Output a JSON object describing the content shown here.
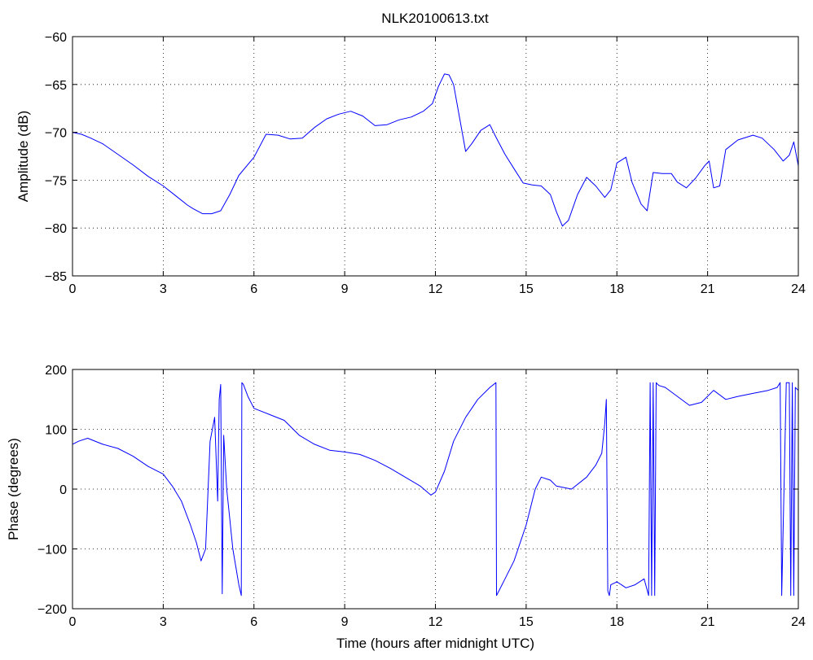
{
  "figure": {
    "title": "NLK20100613.txt",
    "line_color": "#0000ff"
  },
  "chart_data": [
    {
      "type": "line",
      "name": "amplitude",
      "title": "NLK20100613.txt",
      "xlabel": "",
      "ylabel": "Amplitude (dB)",
      "xlim": [
        0,
        24
      ],
      "ylim": [
        -85,
        -60
      ],
      "xticks": [
        0,
        3,
        6,
        9,
        12,
        15,
        18,
        21,
        24
      ],
      "yticks": [
        -85,
        -80,
        -75,
        -70,
        -65,
        -60
      ],
      "grid": true,
      "series": [
        {
          "color": "#0000ff",
          "x": [
            0,
            0.3,
            0.6,
            1.0,
            1.5,
            2.0,
            2.5,
            3.0,
            3.4,
            3.8,
            4.0,
            4.3,
            4.6,
            4.9,
            5.2,
            5.5,
            6.0,
            6.4,
            6.8,
            7.2,
            7.6,
            8.0,
            8.4,
            8.8,
            9.2,
            9.6,
            10.0,
            10.4,
            10.8,
            11.2,
            11.6,
            11.9,
            12.1,
            12.3,
            12.45,
            12.6,
            12.8,
            13.0,
            13.2,
            13.5,
            13.8,
            14.0,
            14.3,
            14.6,
            14.9,
            15.2,
            15.5,
            15.8,
            16.0,
            16.2,
            16.4,
            16.7,
            17.0,
            17.3,
            17.6,
            17.8,
            18.0,
            18.3,
            18.5,
            18.8,
            19.0,
            19.2,
            19.5,
            19.8,
            20.0,
            20.3,
            20.6,
            20.9,
            21.05,
            21.2,
            21.4,
            21.6,
            22.0,
            22.5,
            22.8,
            23.2,
            23.5,
            23.7,
            23.85,
            24.0
          ],
          "y": [
            -70,
            -70.2,
            -70.6,
            -71.2,
            -72.3,
            -73.4,
            -74.6,
            -75.6,
            -76.6,
            -77.6,
            -78.0,
            -78.5,
            -78.5,
            -78.2,
            -76.5,
            -74.5,
            -72.6,
            -70.2,
            -70.3,
            -70.7,
            -70.6,
            -69.5,
            -68.6,
            -68.1,
            -67.8,
            -68.3,
            -69.3,
            -69.2,
            -68.7,
            -68.4,
            -67.8,
            -67.0,
            -65.2,
            -63.9,
            -64.0,
            -65.0,
            -68.5,
            -72.0,
            -71.2,
            -69.8,
            -69.2,
            -70.5,
            -72.3,
            -73.8,
            -75.3,
            -75.5,
            -75.6,
            -76.5,
            -78.3,
            -79.8,
            -79.2,
            -76.5,
            -74.7,
            -75.6,
            -76.8,
            -76.0,
            -73.2,
            -72.6,
            -75.2,
            -77.5,
            -78.2,
            -74.2,
            -74.3,
            -74.3,
            -75.2,
            -75.8,
            -74.8,
            -73.5,
            -73.0,
            -75.8,
            -75.6,
            -71.8,
            -70.8,
            -70.3,
            -70.6,
            -71.8,
            -73.0,
            -72.4,
            -71.0,
            -73.5
          ]
        }
      ]
    },
    {
      "type": "line",
      "name": "phase",
      "title": "",
      "xlabel": "Time (hours after midnight UTC)",
      "ylabel": "Phase (degrees)",
      "xlim": [
        0,
        24
      ],
      "ylim": [
        -200,
        200
      ],
      "xticks": [
        0,
        3,
        6,
        9,
        12,
        15,
        18,
        21,
        24
      ],
      "yticks": [
        -200,
        -100,
        0,
        100,
        200
      ],
      "grid": true,
      "series": [
        {
          "color": "#0000ff",
          "x": [
            0,
            0.2,
            0.5,
            1.0,
            1.5,
            2.0,
            2.5,
            3.0,
            3.3,
            3.6,
            3.9,
            4.1,
            4.25,
            4.4,
            4.55,
            4.7,
            4.8,
            4.85,
            4.9,
            4.95,
            5.0,
            5.1,
            5.2,
            5.3,
            5.4,
            5.5,
            5.58,
            5.6,
            5.65,
            5.8,
            6.0,
            6.5,
            7.0,
            7.5,
            8.0,
            8.5,
            9.0,
            9.5,
            10.0,
            10.5,
            11.0,
            11.5,
            11.85,
            12.0,
            12.3,
            12.6,
            13.0,
            13.4,
            13.8,
            14.0,
            14.02,
            14.05,
            14.1,
            14.3,
            14.6,
            15.0,
            15.3,
            15.5,
            15.8,
            16.0,
            16.5,
            17.0,
            17.3,
            17.5,
            17.6,
            17.65,
            17.7,
            17.75,
            17.8,
            18.0,
            18.3,
            18.6,
            18.9,
            19.05,
            19.1,
            19.15,
            19.2,
            19.25,
            19.3,
            19.35,
            19.4,
            19.6,
            20.0,
            20.4,
            20.8,
            21.2,
            21.6,
            22.0,
            22.5,
            23.0,
            23.3,
            23.4,
            23.45,
            23.6,
            23.7,
            23.75,
            23.8,
            23.85,
            23.9,
            24.0
          ],
          "y": [
            75,
            80,
            85,
            75,
            68,
            55,
            38,
            25,
            5,
            -20,
            -60,
            -90,
            -120,
            -100,
            80,
            120,
            -20,
            150,
            175,
            -175,
            90,
            0,
            -50,
            -100,
            -130,
            -160,
            -178,
            178,
            175,
            155,
            135,
            125,
            115,
            90,
            75,
            65,
            62,
            58,
            48,
            35,
            20,
            5,
            -10,
            -5,
            30,
            80,
            120,
            150,
            170,
            178,
            -178,
            -175,
            -170,
            -150,
            -120,
            -60,
            0,
            20,
            15,
            5,
            0,
            20,
            40,
            60,
            110,
            150,
            -170,
            -178,
            -160,
            -155,
            -165,
            -160,
            -150,
            -178,
            178,
            -178,
            178,
            -178,
            178,
            175,
            173,
            170,
            155,
            140,
            145,
            165,
            150,
            155,
            160,
            165,
            170,
            178,
            -178,
            178,
            178,
            -178,
            178,
            -178,
            170,
            165
          ]
        }
      ]
    }
  ]
}
